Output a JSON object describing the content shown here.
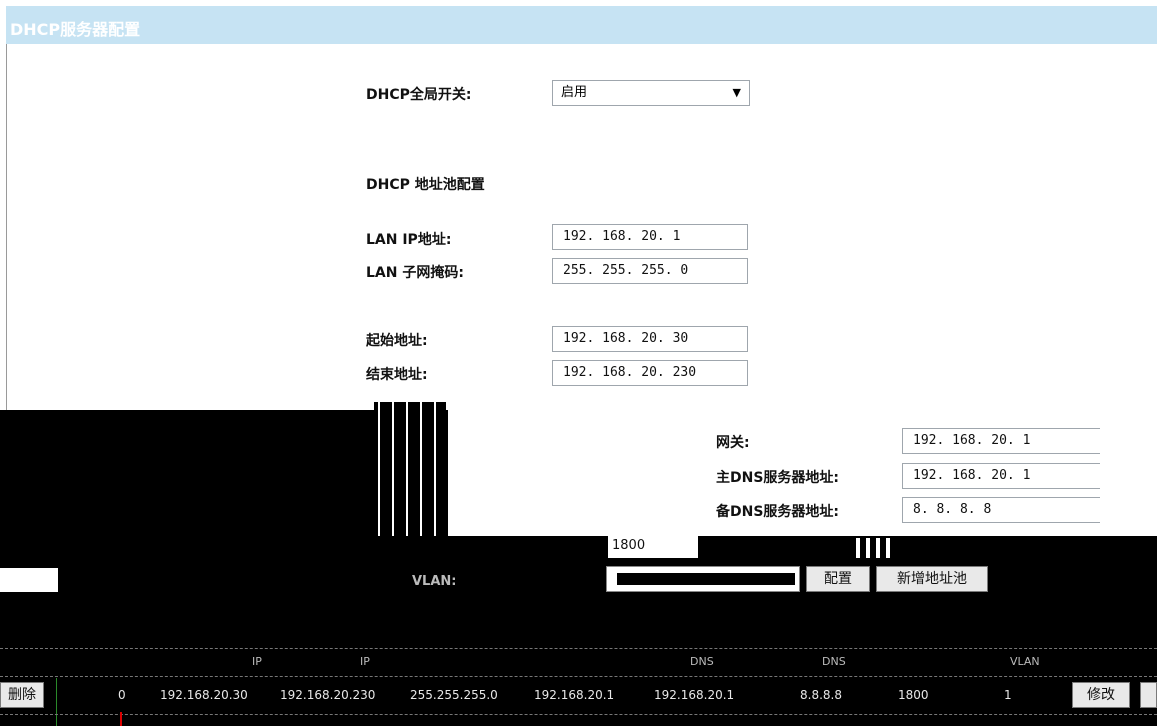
{
  "title": "DHCP服务器配置",
  "global_switch": {
    "label": "DHCP全局开关:",
    "value": "启用"
  },
  "pool_section": {
    "heading": "DHCP 地址池配置"
  },
  "fields": {
    "lan_ip": {
      "label": "LAN IP地址:",
      "value": "192. 168. 20. 1"
    },
    "lan_mask": {
      "label": "LAN 子网掩码:",
      "value": "255. 255. 255. 0"
    },
    "start_addr": {
      "label": "起始地址:",
      "value": "192. 168. 20. 30"
    },
    "end_addr": {
      "label": "结束地址:",
      "value": "192. 168. 20. 230"
    },
    "gateway": {
      "label": "网关:",
      "value": "192. 168. 20. 1"
    },
    "primary_dns": {
      "label": "主DNS服务器地址:",
      "value": "192. 168. 20. 1"
    },
    "secondary_dns": {
      "label": "备DNS服务器地址:",
      "value": "8. 8. 8. 8"
    },
    "lease": {
      "value": "1800"
    },
    "vlan": {
      "label": "VLAN:"
    }
  },
  "buttons": {
    "config": "配置",
    "add_pool": "新增地址池",
    "delete": "删除",
    "modify": "修改"
  },
  "table": {
    "headers": [
      "IP",
      "IP",
      "DNS",
      "DNS",
      "VLAN"
    ],
    "row": {
      "index": "0",
      "start": "192.168.20.30",
      "end": "192.168.20.230",
      "mask": "255.255.255.0",
      "gateway": "192.168.20.1",
      "dns1": "192.168.20.1",
      "dns2": "8.8.8.8",
      "lease": "1800",
      "vlan": "1"
    }
  },
  "colors": {
    "title_bar": "#c6e3f3"
  }
}
